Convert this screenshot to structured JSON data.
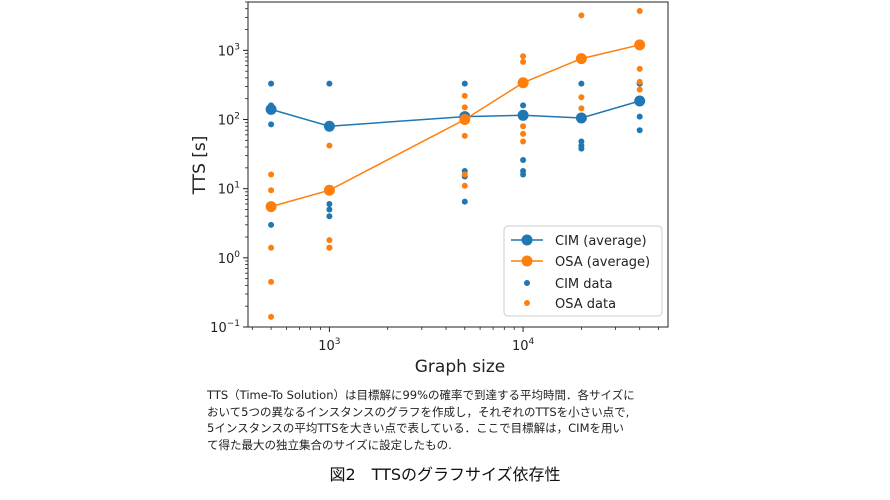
{
  "chart_data": {
    "type": "scatter",
    "xlabel": "Graph size",
    "ylabel": "TTS [s]",
    "xscale": "log",
    "yscale": "log",
    "xlim": [
      380,
      56000
    ],
    "ylim": [
      0.1,
      5000
    ],
    "x_ticks": [
      {
        "value": 1000,
        "base": "10",
        "exp": "3"
      },
      {
        "value": 10000,
        "base": "10",
        "exp": "4"
      }
    ],
    "y_ticks": [
      {
        "value": 0.1,
        "base": "10",
        "exp": "−1"
      },
      {
        "value": 1,
        "base": "10",
        "exp": "0"
      },
      {
        "value": 10,
        "base": "10",
        "exp": "1"
      },
      {
        "value": 100,
        "base": "10",
        "exp": "2"
      },
      {
        "value": 1000,
        "base": "10",
        "exp": "3"
      }
    ],
    "grid": false,
    "legend_position": "lower-right",
    "series": [
      {
        "name": "CIM (average)",
        "kind": "line",
        "color": "#1f77b4",
        "x": [
          500,
          1000,
          5000,
          10000,
          20000,
          40000
        ],
        "y": [
          140,
          80,
          110,
          115,
          105,
          185
        ]
      },
      {
        "name": "OSA (average)",
        "kind": "line",
        "color": "#ff7f0e",
        "x": [
          500,
          1000,
          5000,
          10000,
          20000,
          40000
        ],
        "y": [
          5.5,
          9.5,
          100,
          340,
          760,
          1200
        ]
      },
      {
        "name": "CIM data",
        "kind": "scatter",
        "color": "#1f77b4",
        "x": [
          500,
          500,
          500,
          500,
          500,
          1000,
          1000,
          1000,
          1000,
          1000,
          5000,
          5000,
          5000,
          5000,
          5000,
          10000,
          10000,
          10000,
          10000,
          10000,
          20000,
          20000,
          20000,
          20000,
          20000,
          40000,
          40000,
          40000,
          40000,
          40000
        ],
        "y": [
          330,
          160,
          85,
          130,
          3,
          330,
          80,
          6,
          5,
          4,
          330,
          100,
          18,
          15,
          6.5,
          330,
          160,
          26,
          18,
          16,
          330,
          105,
          48,
          42,
          38,
          330,
          180,
          110,
          70,
          330
        ]
      },
      {
        "name": "OSA data",
        "kind": "scatter",
        "color": "#ff7f0e",
        "x": [
          500,
          500,
          500,
          500,
          500,
          1000,
          1000,
          1000,
          1000,
          1000,
          5000,
          5000,
          5000,
          5000,
          5000,
          10000,
          10000,
          10000,
          10000,
          10000,
          20000,
          20000,
          20000,
          20000,
          20000,
          40000,
          40000,
          40000,
          40000,
          40000
        ],
        "y": [
          16,
          9.5,
          1.4,
          0.45,
          0.14,
          42,
          9.5,
          1.8,
          1.4,
          1.4,
          220,
          150,
          58,
          16,
          11,
          820,
          680,
          80,
          62,
          48,
          3200,
          790,
          210,
          145,
          110,
          3700,
          1200,
          540,
          350,
          270
        ]
      }
    ]
  },
  "caption": [
    "TTS（Time-To Solution）は目標解に99%の確率で到達する平均時間．各サイズに",
    "おいて5つの異なるインスタンスのグラフを作成し，それぞれのTTSを小さい点で,",
    "5インスタンスの平均TTSを大きい点で表している．ここで目標解は，CIMを用い",
    "て得た最大の独立集合のサイズに設定したもの."
  ],
  "figure_title": "図2　TTSのグラフサイズ依存性"
}
